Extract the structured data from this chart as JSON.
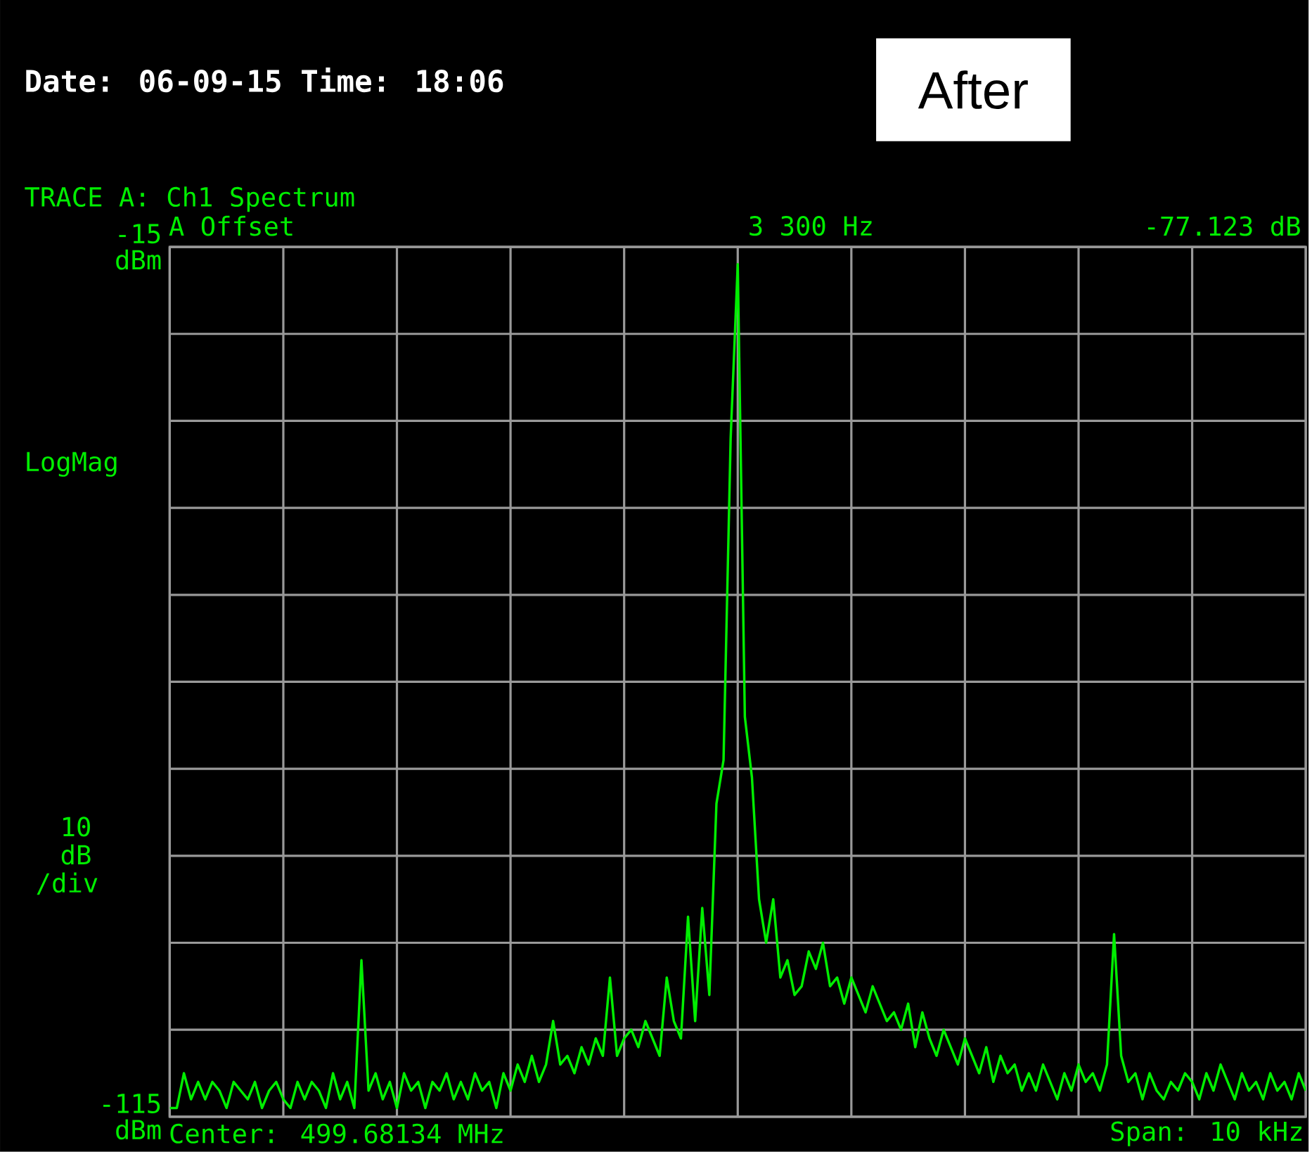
{
  "chart_data": {
    "type": "line",
    "title": "Date: 06-09-15  Time: 18:06",
    "subtitle": "TRACE A: Ch1 Spectrum",
    "ylabel": "10 dB /div",
    "annotations": [
      "After",
      "A Offset",
      "3 300 Hz",
      "-77.123 dB",
      "Center: 499.68134 MHz",
      "Span: 10 kHz",
      "LogMag"
    ],
    "categories": [
      null,
      null,
      null,
      null,
      null,
      null,
      null,
      null,
      null,
      null,
      null,
      null,
      null,
      null,
      null,
      null,
      null,
      null,
      null,
      null,
      null,
      null,
      null,
      null,
      null,
      null,
      null,
      null,
      null,
      null,
      null,
      null,
      null,
      null,
      null,
      null,
      null,
      null,
      null,
      null,
      null,
      null,
      null,
      null,
      null,
      null,
      null,
      null,
      null,
      null,
      null,
      null,
      null,
      null,
      null,
      null,
      null,
      null,
      null,
      null,
      null,
      null,
      null,
      null,
      null,
      null,
      null,
      null,
      null,
      null,
      null,
      null,
      null,
      null,
      null,
      null,
      null,
      null,
      null,
      null,
      null,
      null,
      null,
      null,
      null,
      null,
      null,
      null,
      null,
      null,
      null,
      null,
      null,
      null,
      null,
      null,
      null,
      null,
      null,
      null,
      null,
      null,
      null,
      null,
      null,
      null,
      null,
      null,
      null,
      null,
      null,
      null,
      null,
      null,
      null,
      null,
      null,
      null,
      null,
      null,
      null,
      null,
      null,
      null,
      null,
      null,
      null,
      null,
      null,
      null,
      null,
      null,
      null,
      null,
      null,
      null,
      null,
      null,
      null,
      null,
      null,
      null,
      null,
      null,
      null,
      null,
      null,
      null,
      null,
      null,
      null,
      null,
      null,
      null,
      null,
      null,
      null,
      null,
      null,
      null,
      null
    ],
    "values": [
      -114,
      -114,
      -110,
      -113,
      -111,
      -113,
      -111,
      -112,
      -114,
      -111,
      -112,
      -113,
      -111,
      -114,
      -112,
      -111,
      -113,
      -114,
      -111,
      -113,
      -111,
      -112,
      -114,
      -110,
      -113,
      -111,
      -114,
      -97,
      -112,
      -110,
      -113,
      -111,
      -114,
      -110,
      -112,
      -111,
      -114,
      -111,
      -112,
      -110,
      -113,
      -111,
      -113,
      -110,
      -112,
      -111,
      -114,
      -110,
      -112,
      -109,
      -111,
      -108,
      -111,
      -109,
      -104,
      -109,
      -108,
      -110,
      -107,
      -109,
      -106,
      -108,
      -99,
      -108,
      -106,
      -105,
      -107,
      -104,
      -106,
      -108,
      -99,
      -104,
      -106,
      -92,
      -104,
      -91,
      -101,
      -79,
      -74,
      -37,
      -17,
      -69,
      -76,
      -90,
      -95,
      -90,
      -99,
      -97,
      -101,
      -100,
      -96,
      -98,
      -95,
      -100,
      -99,
      -102,
      -99,
      -101,
      -103,
      -100,
      -102,
      -104,
      -103,
      -105,
      -102,
      -107,
      -103,
      -106,
      -108,
      -105,
      -107,
      -109,
      -106,
      -108,
      -110,
      -107,
      -111,
      -108,
      -110,
      -109,
      -112,
      -110,
      -112,
      -109,
      -111,
      -113,
      -110,
      -112,
      -109,
      -111,
      -110,
      -112,
      -109,
      -94,
      -108,
      -111,
      -110,
      -113,
      -110,
      -112,
      -113,
      -111,
      -112,
      -110,
      -111,
      -113,
      -110,
      -112,
      -109,
      -111,
      -113,
      -110,
      -112,
      -111,
      -113,
      -110,
      -112,
      -111,
      -113,
      -110,
      -112
    ],
    "color": "#00ee00",
    "ylim": [
      -115,
      -15
    ],
    "yticks": [
      {
        "value": -115,
        "label": "-115 dBm"
      },
      {
        "value": -105,
        "label": null
      },
      {
        "value": -95,
        "label": null
      },
      {
        "value": -85,
        "label": null
      },
      {
        "value": -75,
        "label": null
      },
      {
        "value": -65,
        "label": null
      },
      {
        "value": -55,
        "label": null
      },
      {
        "value": -45,
        "label": null
      },
      {
        "value": -35,
        "label": null
      },
      {
        "value": -25,
        "label": null
      },
      {
        "value": -15,
        "label": "-15 dBm"
      }
    ],
    "grid": true
  }
}
